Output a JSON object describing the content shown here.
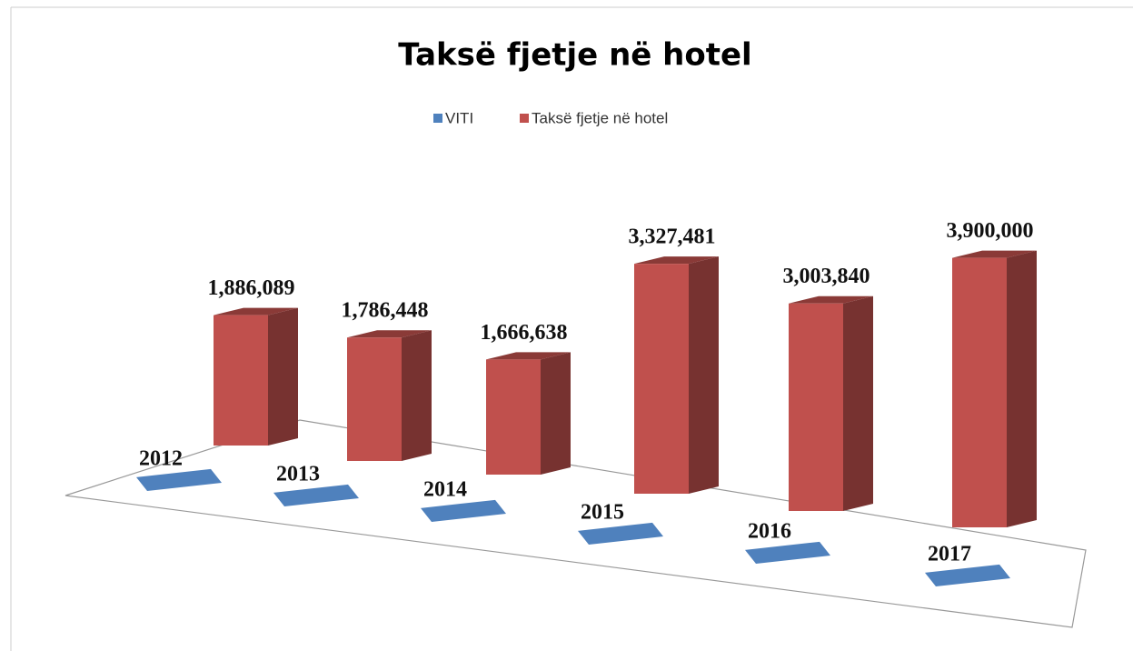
{
  "chart_data": {
    "type": "bar3d",
    "title": "Taksë fjetje në hotel",
    "series": [
      {
        "name": "VITI",
        "color": "#4f81bd",
        "values": [
          2012,
          2013,
          2014,
          2015,
          2016,
          2017
        ]
      },
      {
        "name": "Taksë fjetje në hotel",
        "color": "#c0504d",
        "values": [
          1886089,
          1786448,
          1666638,
          3327481,
          3003840,
          3900000
        ],
        "value_labels": [
          "1,886,089",
          "1,786,448",
          "1,666,638",
          "3,327,481",
          "3,003,840",
          "3,900,000"
        ]
      }
    ],
    "legend": "top"
  }
}
